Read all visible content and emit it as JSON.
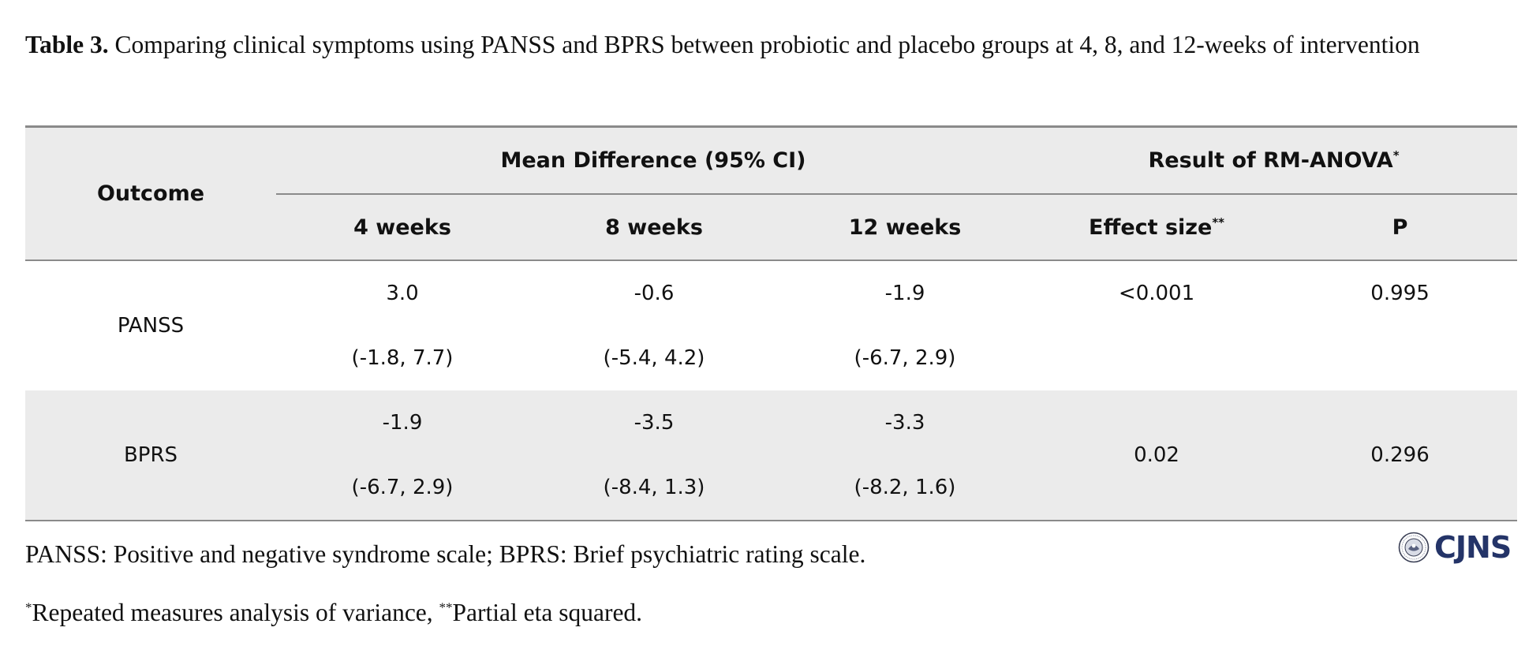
{
  "caption": {
    "label": "Table 3.",
    "text": " Comparing clinical symptoms using PANSS and BPRS between probiotic and placebo groups at 4, 8, and 12-weeks of intervention"
  },
  "table": {
    "headers": {
      "outcome": "Outcome",
      "mean_diff_group": "Mean Difference (95% CI)",
      "anova_group": "Result of RM-ANOVA",
      "anova_group_mark": "*",
      "week4": "4 weeks",
      "week8": "8 weeks",
      "week12": "12 weeks",
      "effect_size": "Effect size",
      "effect_size_mark": "**",
      "p": "P"
    },
    "rows": [
      {
        "outcome": "PANSS",
        "week4": {
          "mean": "3.0",
          "ci": "(-1.8, 7.7)"
        },
        "week8": {
          "mean": "-0.6",
          "ci": "(-5.4, 4.2)"
        },
        "week12": {
          "mean": "-1.9",
          "ci": "(-6.7, 2.9)"
        },
        "effect_size": "<0.001",
        "p": "0.995"
      },
      {
        "outcome": "BPRS",
        "week4": {
          "mean": "-1.9",
          "ci": "(-6.7, 2.9)"
        },
        "week8": {
          "mean": "-3.5",
          "ci": "(-8.4, 1.3)"
        },
        "week12": {
          "mean": "-3.3",
          "ci": "(-8.2, 1.6)"
        },
        "effect_size": "0.02",
        "p": "0.296"
      }
    ]
  },
  "footnotes": {
    "abbreviations": "PANSS: Positive and negative syndrome scale; BPRS: Brief psychiatric rating scale.",
    "mark1": "*",
    "note1": "Repeated measures analysis of variance, ",
    "mark2": "**",
    "note2": "Partial eta squared."
  },
  "logo": {
    "text": "CJNS",
    "color": "#243468"
  },
  "colors": {
    "header_bg": "#ebebeb",
    "rule": "#8a8a8a"
  }
}
